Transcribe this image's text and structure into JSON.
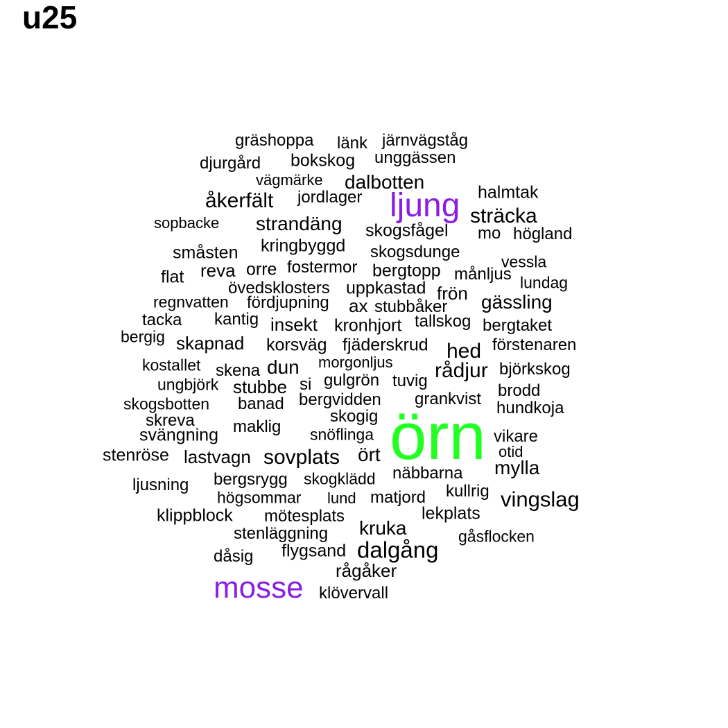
{
  "chart_data": {
    "type": "wordcloud",
    "title": "u25",
    "colors": {
      "default": "#000000",
      "ljung": "#8a1ee6",
      "mosse": "#8a1ee6",
      "örn": "#22ff22"
    },
    "words": [
      {
        "text": "örn",
        "weight": 9
      },
      {
        "text": "ljung",
        "weight": 4
      },
      {
        "text": "mosse",
        "weight": 4
      },
      {
        "text": "vingslag",
        "weight": 2
      },
      {
        "text": "dalgång",
        "weight": 2
      },
      {
        "text": "sträcka",
        "weight": 2
      },
      {
        "text": "åkerfält",
        "weight": 2
      },
      {
        "text": "hed",
        "weight": 2
      },
      {
        "text": "rådjur",
        "weight": 2
      },
      {
        "text": "sovplats",
        "weight": 2
      },
      {
        "text": "strandäng",
        "weight": 2
      },
      {
        "text": "dalbotten",
        "weight": 2
      },
      {
        "text": "gässling",
        "weight": 2
      },
      {
        "text": "kruka",
        "weight": 2
      },
      {
        "text": "ört",
        "weight": 2
      },
      {
        "text": "mylla",
        "weight": 2
      },
      {
        "text": "ax",
        "weight": 1.5
      },
      {
        "text": "gräshoppa",
        "weight": 1
      },
      {
        "text": "länk",
        "weight": 1
      },
      {
        "text": "järnvägståg",
        "weight": 1
      },
      {
        "text": "djurgård",
        "weight": 1
      },
      {
        "text": "bokskog",
        "weight": 1
      },
      {
        "text": "unggässen",
        "weight": 1
      },
      {
        "text": "vägmärke",
        "weight": 1
      },
      {
        "text": "halmtak",
        "weight": 1
      },
      {
        "text": "jordlager",
        "weight": 1
      },
      {
        "text": "sopbacke",
        "weight": 1
      },
      {
        "text": "skogsfågel",
        "weight": 1
      },
      {
        "text": "mo",
        "weight": 1
      },
      {
        "text": "högland",
        "weight": 1
      },
      {
        "text": "kringbyggd",
        "weight": 1
      },
      {
        "text": "småsten",
        "weight": 1
      },
      {
        "text": "skogsdunge",
        "weight": 1
      },
      {
        "text": "vessla",
        "weight": 1
      },
      {
        "text": "reva",
        "weight": 1
      },
      {
        "text": "orre",
        "weight": 1
      },
      {
        "text": "fostermor",
        "weight": 1
      },
      {
        "text": "bergtopp",
        "weight": 1
      },
      {
        "text": "månljus",
        "weight": 1
      },
      {
        "text": "flat",
        "weight": 1
      },
      {
        "text": "lundag",
        "weight": 1
      },
      {
        "text": "övedsklosters",
        "weight": 1
      },
      {
        "text": "uppkastad",
        "weight": 1
      },
      {
        "text": "frön",
        "weight": 1
      },
      {
        "text": "regnvatten",
        "weight": 1
      },
      {
        "text": "fördjupning",
        "weight": 1
      },
      {
        "text": "stubbåker",
        "weight": 1
      },
      {
        "text": "tacka",
        "weight": 1
      },
      {
        "text": "kantig",
        "weight": 1
      },
      {
        "text": "insekt",
        "weight": 1
      },
      {
        "text": "kronhjort",
        "weight": 1
      },
      {
        "text": "tallskog",
        "weight": 1
      },
      {
        "text": "bergtaket",
        "weight": 1
      },
      {
        "text": "bergig",
        "weight": 1
      },
      {
        "text": "skapnad",
        "weight": 1
      },
      {
        "text": "korsväg",
        "weight": 1
      },
      {
        "text": "fjäderskrud",
        "weight": 1
      },
      {
        "text": "förstenaren",
        "weight": 1
      },
      {
        "text": "kostallet",
        "weight": 1
      },
      {
        "text": "skena",
        "weight": 1
      },
      {
        "text": "dun",
        "weight": 1
      },
      {
        "text": "morgonljus",
        "weight": 1
      },
      {
        "text": "björkskog",
        "weight": 1
      },
      {
        "text": "ungbjörk",
        "weight": 1
      },
      {
        "text": "stubbe",
        "weight": 1
      },
      {
        "text": "si",
        "weight": 1
      },
      {
        "text": "gulgrön",
        "weight": 1
      },
      {
        "text": "tuvig",
        "weight": 1
      },
      {
        "text": "brodd",
        "weight": 1
      },
      {
        "text": "skogsbotten",
        "weight": 1
      },
      {
        "text": "banad",
        "weight": 1
      },
      {
        "text": "bergvidden",
        "weight": 1
      },
      {
        "text": "grankvist",
        "weight": 1
      },
      {
        "text": "hundkoja",
        "weight": 1
      },
      {
        "text": "skreva",
        "weight": 1
      },
      {
        "text": "skogig",
        "weight": 1
      },
      {
        "text": "maklig",
        "weight": 1
      },
      {
        "text": "svängning",
        "weight": 1
      },
      {
        "text": "snöflinga",
        "weight": 1
      },
      {
        "text": "vikare",
        "weight": 1
      },
      {
        "text": "otid",
        "weight": 1
      },
      {
        "text": "stenröse",
        "weight": 1
      },
      {
        "text": "lastvagn",
        "weight": 1
      },
      {
        "text": "näbbarna",
        "weight": 1
      },
      {
        "text": "ljusning",
        "weight": 1
      },
      {
        "text": "bergsrygg",
        "weight": 1
      },
      {
        "text": "skogklädd",
        "weight": 1
      },
      {
        "text": "kullrig",
        "weight": 1
      },
      {
        "text": "högsommar",
        "weight": 1
      },
      {
        "text": "lund",
        "weight": 1
      },
      {
        "text": "matjord",
        "weight": 1
      },
      {
        "text": "klippblock",
        "weight": 1
      },
      {
        "text": "mötesplats",
        "weight": 1
      },
      {
        "text": "lekplats",
        "weight": 1
      },
      {
        "text": "stenläggning",
        "weight": 1
      },
      {
        "text": "gåsflocken",
        "weight": 1
      },
      {
        "text": "dåsig",
        "weight": 1
      },
      {
        "text": "flygsand",
        "weight": 1
      },
      {
        "text": "rågåker",
        "weight": 1
      },
      {
        "text": "klövervall",
        "weight": 1
      }
    ]
  }
}
